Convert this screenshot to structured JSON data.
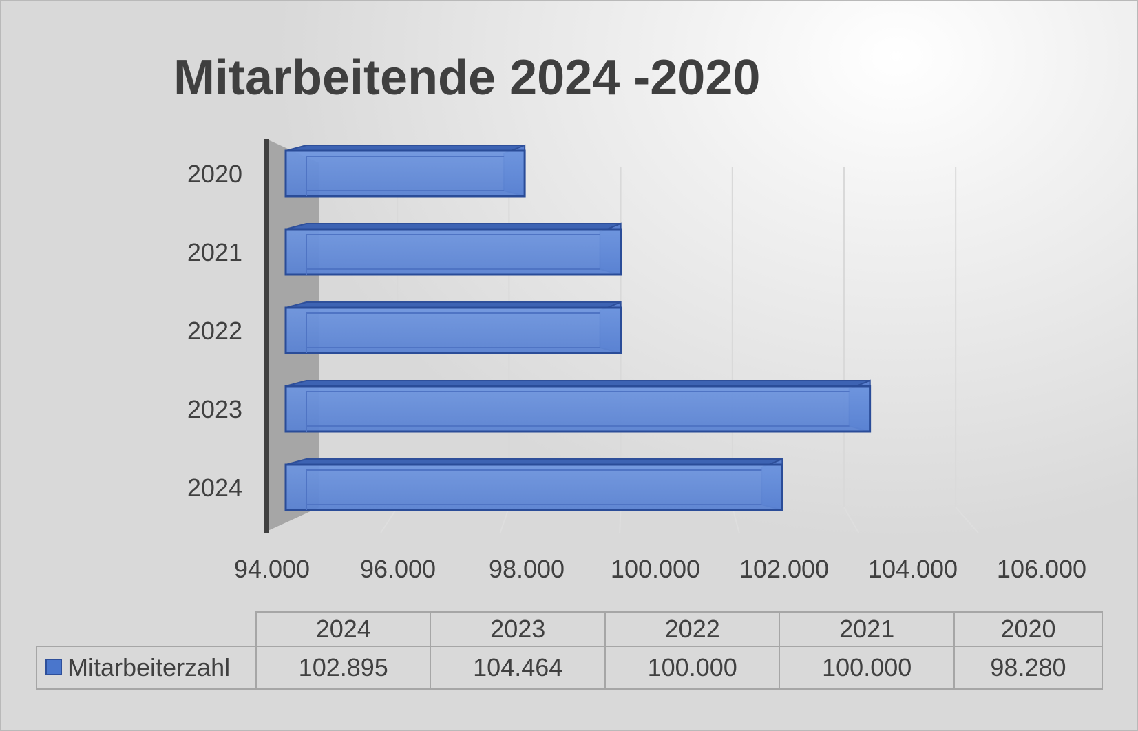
{
  "chart_data": {
    "type": "bar",
    "orientation": "horizontal",
    "title": "Mitarbeitende 2024 -2020",
    "categories": [
      "2024",
      "2023",
      "2022",
      "2021",
      "2020"
    ],
    "series": [
      {
        "name": "Mitarbeiterzahl",
        "values": [
          102895,
          104464,
          100000,
          100000,
          98280
        ],
        "display_values": [
          "102.895",
          "104.464",
          "100.000",
          "100.000",
          "98.280"
        ],
        "color": "#4a76cc"
      }
    ],
    "xlim": [
      94000,
      106000
    ],
    "x_ticks": [
      94000,
      96000,
      98000,
      100000,
      102000,
      104000,
      106000
    ],
    "x_tick_labels": [
      "94.000",
      "96.000",
      "98.000",
      "100.000",
      "102.000",
      "104.000",
      "106.000"
    ],
    "grid": true,
    "legend": "data-table-below",
    "data_table": true
  }
}
